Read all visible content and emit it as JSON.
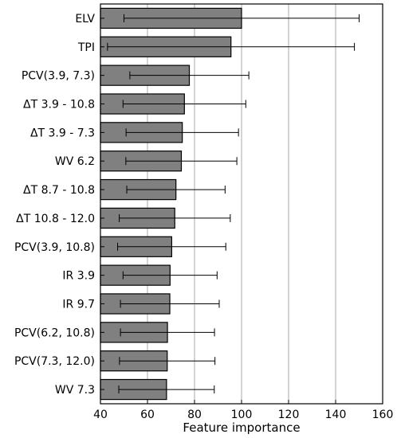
{
  "chart_data": {
    "type": "bar",
    "orientation": "horizontal",
    "xlabel": "Feature importance",
    "ylabel": "",
    "title": "",
    "xlim": [
      40,
      160
    ],
    "xticks": [
      40,
      60,
      80,
      100,
      120,
      140,
      160
    ],
    "grid": "vertical",
    "bar_color": "#808080",
    "categories": [
      "ELV",
      "TPI",
      "PCV(3.9, 7.3)",
      "ΔT 3.9 - 10.8",
      "ΔT 3.9 - 7.3",
      "WV 6.2",
      "ΔT 8.7 - 10.8",
      "ΔT 10.8 - 12.0",
      "PCV(3.9, 10.8)",
      "IR 3.9",
      "IR 9.7",
      "PCV(6.2, 10.8)",
      "PCV(7.3, 12.0)",
      "WV 7.3"
    ],
    "values": [
      100.0,
      95.5,
      77.8,
      75.7,
      74.8,
      74.4,
      72.1,
      71.6,
      70.3,
      69.6,
      69.5,
      68.5,
      68.4,
      68.1
    ],
    "error": [
      50.0,
      52.5,
      25.3,
      26.1,
      23.9,
      23.6,
      20.9,
      23.6,
      23.0,
      20.0,
      21.0,
      20.0,
      20.3,
      20.3
    ]
  }
}
